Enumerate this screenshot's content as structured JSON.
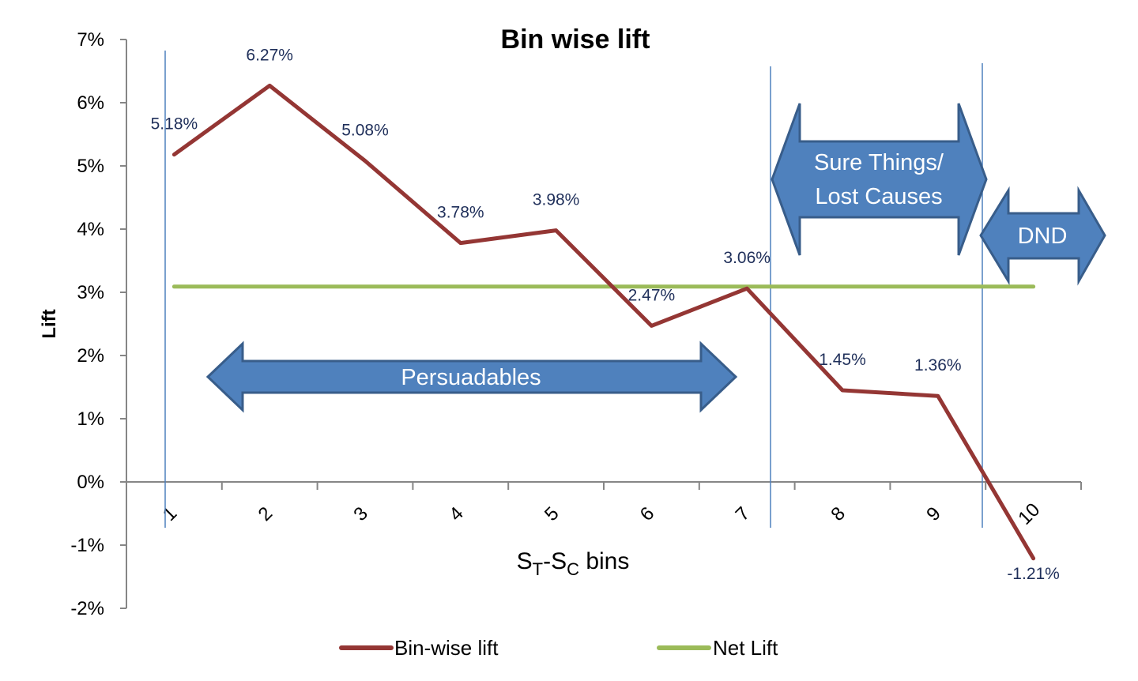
{
  "chart_data": {
    "type": "line",
    "title": "Bin wise lift",
    "ylabel": "Lift",
    "xlabel_main": "S",
    "xlabel_sub_t": "T",
    "xlabel_dash": "-S",
    "xlabel_sub_c": "C",
    "xlabel_tail": " bins",
    "ylim": [
      -2,
      7
    ],
    "yticks": [
      "7%",
      "6%",
      "5%",
      "4%",
      "3%",
      "2%",
      "1%",
      "0%",
      "-1%",
      "-2%"
    ],
    "ytick_values": [
      7,
      6,
      5,
      4,
      3,
      2,
      1,
      0,
      -1,
      -2
    ],
    "categories": [
      "1",
      "2",
      "3",
      "4",
      "5",
      "6",
      "7",
      "8",
      "9",
      "10"
    ],
    "series": [
      {
        "name": "Bin-wise lift",
        "color": "#943634",
        "values": [
          5.18,
          6.27,
          5.08,
          3.78,
          3.98,
          2.47,
          3.06,
          1.45,
          1.36,
          -1.21
        ],
        "labels": [
          "5.18%",
          "6.27%",
          "5.08%",
          "3.78%",
          "3.98%",
          "2.47%",
          "3.06%",
          "1.45%",
          "1.36%",
          "-1.21%"
        ]
      },
      {
        "name": "Net Lift",
        "color": "#9bbb59",
        "values": [
          3.09,
          3.09,
          3.09,
          3.09,
          3.09,
          3.09,
          3.09,
          3.09,
          3.09,
          3.09
        ]
      }
    ],
    "grid": false,
    "legend": "bottom",
    "annotations": [
      {
        "text": "Persuadables",
        "span": [
          1,
          6.5
        ]
      },
      {
        "text_line1": "Sure Things/",
        "text_line2": "Lost Causes",
        "span": [
          7.25,
          9.4
        ]
      },
      {
        "text": "DND",
        "span": [
          9.5,
          10.8
        ]
      }
    ],
    "arrow_color": "#4f81bd"
  }
}
